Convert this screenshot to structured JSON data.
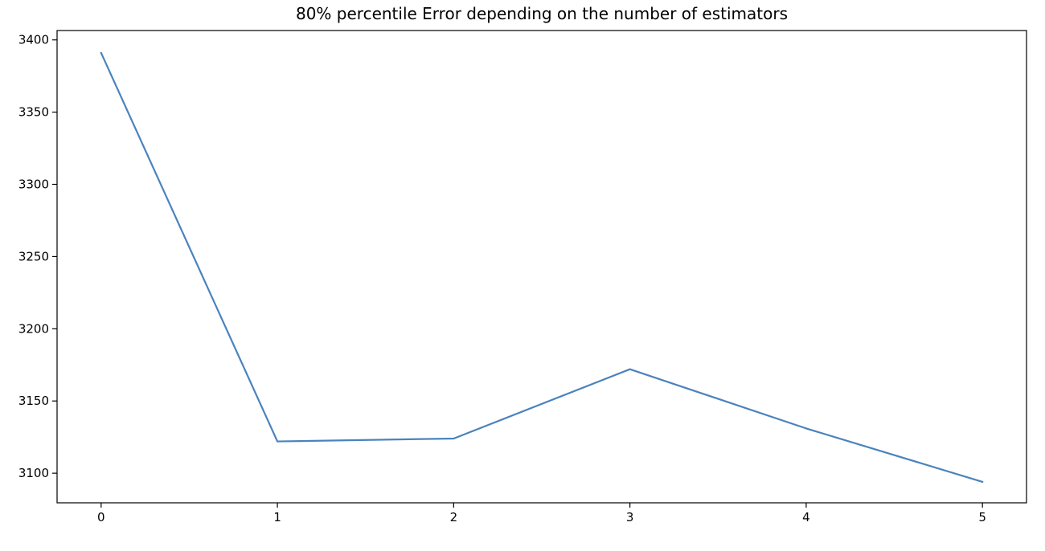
{
  "chart_data": {
    "type": "line",
    "title": "80% percentile Error depending on the number of estimators",
    "xlabel": "",
    "ylabel": "",
    "x": [
      0,
      1,
      2,
      3,
      4,
      5
    ],
    "series": [
      {
        "values": [
          3391,
          3122,
          3124,
          3172,
          3131,
          3094
        ]
      }
    ],
    "xlim": [
      -0.25,
      5.25
    ],
    "ylim": [
      3079.5,
      3406.5
    ],
    "xticks": [
      0,
      1,
      2,
      3,
      4,
      5
    ],
    "xtick_labels": [
      "0",
      "1",
      "2",
      "3",
      "4",
      "5"
    ],
    "yticks": [
      3100,
      3150,
      3200,
      3250,
      3300,
      3350,
      3400
    ],
    "ytick_labels": [
      "3100",
      "3150",
      "3200",
      "3250",
      "3300",
      "3350",
      "3400"
    ],
    "grid": false,
    "legend": "none",
    "colors": {
      "series": "#4a83bd"
    }
  }
}
